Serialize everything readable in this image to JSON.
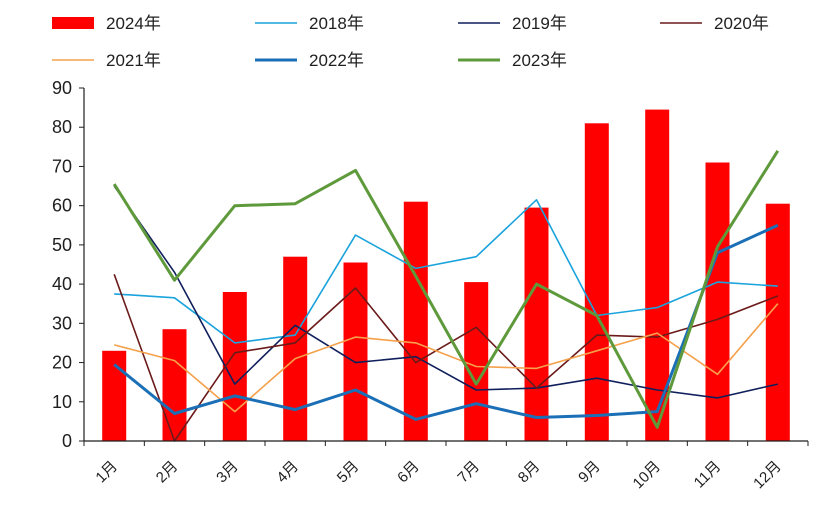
{
  "chart_data": {
    "type": "bar+line",
    "title": "",
    "xlabel": "",
    "ylabel": "",
    "ylim": [
      0,
      90
    ],
    "yticks": [
      0,
      10,
      20,
      30,
      40,
      50,
      60,
      70,
      80,
      90
    ],
    "categories": [
      "1月",
      "2月",
      "3月",
      "4月",
      "5月",
      "6月",
      "7月",
      "8月",
      "9月",
      "10月",
      "11月",
      "12月"
    ],
    "legend_position": "top",
    "bar_series": {
      "name": "2024年",
      "color": "#ff0000",
      "values": [
        23,
        28.5,
        38,
        47,
        45.5,
        61,
        40.5,
        59.5,
        81,
        84.5,
        71,
        60.5
      ]
    },
    "line_series": [
      {
        "name": "2018年",
        "color": "#1aa3dc",
        "width": "thin",
        "values": [
          37.5,
          36.5,
          25,
          27,
          52.5,
          44,
          47,
          61.5,
          32,
          34,
          40.5,
          39.5
        ]
      },
      {
        "name": "2019年",
        "color": "#0f1f5c",
        "width": "thin",
        "values": [
          65,
          43,
          14.5,
          29.5,
          20,
          21.5,
          13,
          13.5,
          16,
          13,
          11,
          14.5
        ]
      },
      {
        "name": "2020年",
        "color": "#6b1a1a",
        "width": "thin",
        "values": [
          42.5,
          0,
          22.5,
          25,
          39,
          20,
          29,
          13.5,
          27,
          26.5,
          31,
          37
        ]
      },
      {
        "name": "2021年",
        "color": "#f5a04b",
        "width": "thin",
        "values": [
          24.5,
          20.5,
          7.5,
          21,
          26.5,
          25,
          19,
          18.5,
          23,
          27.5,
          17,
          35
        ]
      },
      {
        "name": "2022年",
        "color": "#1b6fb6",
        "width": "thick",
        "values": [
          19.5,
          7,
          11.5,
          8,
          13,
          5.5,
          9.5,
          6,
          6.5,
          7.5,
          48,
          55
        ]
      },
      {
        "name": "2023年",
        "color": "#5e9a3b",
        "width": "thick",
        "values": [
          65.5,
          41,
          60,
          60.5,
          69,
          42,
          14.5,
          40,
          32,
          3.5,
          49.5,
          74
        ]
      }
    ]
  }
}
